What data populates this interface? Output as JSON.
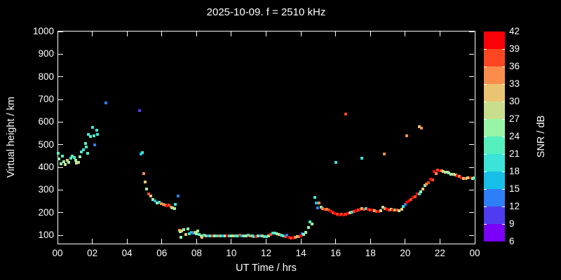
{
  "window": {
    "background": "#000000",
    "foreground": "#ffffff"
  },
  "axes": {
    "x": {
      "tick_labels": [
        "00",
        "02",
        "04",
        "06",
        "08",
        "10",
        "12",
        "14",
        "16",
        "18",
        "20",
        "22",
        "00"
      ]
    },
    "y": {
      "tick_values": [
        100,
        200,
        300,
        400,
        500,
        600,
        700,
        800,
        900,
        1000
      ]
    }
  },
  "colorbar": {
    "label": "SNR / dB",
    "tick_values": [
      42,
      39,
      36,
      33,
      30,
      27,
      24,
      21,
      18,
      15,
      12,
      9,
      6
    ],
    "bin_size_db": 3,
    "palette_low_to_high": [
      "#7a00f7",
      "#4f3cf0",
      "#2e7ef7",
      "#17bfe8",
      "#3be3d8",
      "#55efc0",
      "#98f5a8",
      "#c9de8d",
      "#eac472",
      "#fb8d4c",
      "#fc4621",
      "#fb0007"
    ]
  },
  "chart_data": {
    "type": "scatter",
    "title": "2025-10-09. f = 2510 kHz",
    "xlabel": "UT Time / hrs",
    "ylabel": "Virtual height / km",
    "color_label": "SNR / dB",
    "xlim": [
      0,
      24
    ],
    "ylim": [
      100,
      1000
    ],
    "clim": [
      6,
      42
    ],
    "grid": false,
    "points_t_h_snr": [
      [
        0.05,
        462,
        21
      ],
      [
        0.1,
        438,
        24
      ],
      [
        0.2,
        415,
        25
      ],
      [
        0.3,
        448,
        21
      ],
      [
        0.38,
        425,
        24
      ],
      [
        0.45,
        412,
        28
      ],
      [
        0.55,
        432,
        30
      ],
      [
        0.65,
        422,
        24
      ],
      [
        0.75,
        440,
        21
      ],
      [
        0.85,
        448,
        22
      ],
      [
        0.95,
        443,
        21
      ],
      [
        1.05,
        430,
        24
      ],
      [
        1.1,
        418,
        28
      ],
      [
        1.2,
        422,
        27
      ],
      [
        1.3,
        445,
        24
      ],
      [
        1.38,
        468,
        21
      ],
      [
        1.5,
        478,
        19
      ],
      [
        1.6,
        506,
        21
      ],
      [
        1.66,
        490,
        22
      ],
      [
        1.72,
        462,
        21
      ],
      [
        1.78,
        545,
        20
      ],
      [
        1.9,
        535,
        21
      ],
      [
        2.0,
        576,
        19
      ],
      [
        2.1,
        540,
        22
      ],
      [
        2.14,
        500,
        13
      ],
      [
        2.25,
        565,
        20
      ],
      [
        2.3,
        545,
        19
      ],
      [
        2.8,
        685,
        13
      ],
      [
        4.7,
        650,
        10
      ],
      [
        4.78,
        458,
        17
      ],
      [
        4.88,
        466,
        19
      ],
      [
        4.95,
        373,
        34
      ],
      [
        5.05,
        336,
        31
      ],
      [
        5.13,
        303,
        26
      ],
      [
        5.25,
        284,
        37
      ],
      [
        5.35,
        273,
        31
      ],
      [
        5.48,
        257,
        25
      ],
      [
        5.6,
        251,
        16
      ],
      [
        5.72,
        242,
        25
      ],
      [
        5.85,
        245,
        20
      ],
      [
        5.97,
        239,
        34
      ],
      [
        6.1,
        236,
        34
      ],
      [
        6.22,
        232,
        35
      ],
      [
        6.3,
        230,
        40
      ],
      [
        6.42,
        233,
        37
      ],
      [
        6.52,
        223,
        34
      ],
      [
        6.62,
        220,
        29
      ],
      [
        6.72,
        216,
        25
      ],
      [
        6.78,
        236,
        19
      ],
      [
        6.95,
        272,
        13
      ],
      [
        7.0,
        122,
        34
      ],
      [
        7.05,
        116,
        24
      ],
      [
        7.08,
        91,
        25
      ],
      [
        7.12,
        119,
        30
      ],
      [
        7.25,
        125,
        24
      ],
      [
        7.4,
        103,
        30
      ],
      [
        7.5,
        128,
        24
      ],
      [
        7.6,
        106,
        19
      ],
      [
        7.7,
        112,
        16
      ],
      [
        7.82,
        109,
        14
      ],
      [
        7.92,
        112,
        30
      ],
      [
        8.0,
        106,
        24
      ],
      [
        8.08,
        119,
        24
      ],
      [
        8.15,
        103,
        22
      ],
      [
        8.25,
        97,
        24
      ],
      [
        8.32,
        92,
        30
      ],
      [
        8.44,
        100,
        19
      ],
      [
        8.56,
        98,
        31
      ],
      [
        8.68,
        97,
        16
      ],
      [
        8.8,
        98,
        22
      ],
      [
        8.92,
        96,
        37
      ],
      [
        9.04,
        97,
        25
      ],
      [
        9.16,
        98,
        19
      ],
      [
        9.28,
        96,
        34
      ],
      [
        9.4,
        97,
        22
      ],
      [
        9.52,
        98,
        16
      ],
      [
        9.64,
        97,
        28
      ],
      [
        9.76,
        96,
        40
      ],
      [
        9.88,
        98,
        19
      ],
      [
        10.0,
        97,
        25
      ],
      [
        10.12,
        98,
        31
      ],
      [
        10.24,
        97,
        19
      ],
      [
        10.36,
        98,
        22
      ],
      [
        10.48,
        100,
        37
      ],
      [
        10.6,
        98,
        16
      ],
      [
        10.72,
        97,
        25
      ],
      [
        10.84,
        98,
        28
      ],
      [
        10.96,
        100,
        19
      ],
      [
        11.08,
        98,
        34
      ],
      [
        11.2,
        96,
        22
      ],
      [
        11.3,
        94,
        19
      ],
      [
        11.42,
        94,
        40
      ],
      [
        11.54,
        96,
        25
      ],
      [
        11.66,
        97,
        16
      ],
      [
        11.78,
        96,
        31
      ],
      [
        11.9,
        94,
        22
      ],
      [
        12.02,
        94,
        19
      ],
      [
        12.14,
        97,
        28
      ],
      [
        12.26,
        104,
        37
      ],
      [
        12.38,
        108,
        19
      ],
      [
        12.5,
        110,
        22
      ],
      [
        12.62,
        107,
        25
      ],
      [
        12.74,
        103,
        31
      ],
      [
        12.86,
        99,
        19
      ],
      [
        12.98,
        96,
        22
      ],
      [
        13.1,
        94,
        37
      ],
      [
        13.2,
        100,
        13
      ],
      [
        13.3,
        91,
        40
      ],
      [
        13.42,
        88,
        37
      ],
      [
        13.54,
        88,
        40
      ],
      [
        13.66,
        91,
        34
      ],
      [
        13.78,
        94,
        28
      ],
      [
        13.88,
        95,
        34
      ],
      [
        13.98,
        98,
        40
      ],
      [
        14.06,
        106,
        13
      ],
      [
        14.16,
        103,
        24
      ],
      [
        14.26,
        112,
        24
      ],
      [
        14.46,
        134,
        24
      ],
      [
        14.54,
        159,
        21
      ],
      [
        14.66,
        149,
        26
      ],
      [
        14.79,
        268,
        19
      ],
      [
        14.88,
        243,
        16
      ],
      [
        14.96,
        221,
        13
      ],
      [
        15.06,
        243,
        34
      ],
      [
        15.16,
        224,
        24
      ],
      [
        15.26,
        218,
        34
      ],
      [
        15.38,
        215,
        37
      ],
      [
        15.5,
        213,
        34
      ],
      [
        15.62,
        210,
        37
      ],
      [
        15.74,
        205,
        40
      ],
      [
        15.86,
        200,
        37
      ],
      [
        15.98,
        197,
        40
      ],
      [
        16.1,
        194,
        37
      ],
      [
        16.22,
        191,
        40
      ],
      [
        16.34,
        192,
        37
      ],
      [
        16.46,
        190,
        40
      ],
      [
        16.58,
        192,
        37
      ],
      [
        16.7,
        196,
        40
      ],
      [
        16.82,
        199,
        31
      ],
      [
        16.94,
        202,
        18
      ],
      [
        17.06,
        205,
        37
      ],
      [
        17.18,
        208,
        40
      ],
      [
        17.3,
        211,
        37
      ],
      [
        17.42,
        214,
        40
      ],
      [
        17.52,
        217,
        31
      ],
      [
        17.64,
        215,
        37
      ],
      [
        17.76,
        217,
        18
      ],
      [
        17.88,
        215,
        40
      ],
      [
        18.0,
        212,
        37
      ],
      [
        18.1,
        210,
        40
      ],
      [
        18.22,
        209,
        31
      ],
      [
        18.34,
        206,
        37
      ],
      [
        18.46,
        205,
        40
      ],
      [
        18.58,
        208,
        28
      ],
      [
        18.7,
        223,
        28
      ],
      [
        18.82,
        218,
        34
      ],
      [
        18.94,
        215,
        40
      ],
      [
        19.06,
        212,
        37
      ],
      [
        19.18,
        214,
        28
      ],
      [
        19.3,
        212,
        40
      ],
      [
        19.42,
        210,
        31
      ],
      [
        19.54,
        212,
        37
      ],
      [
        19.66,
        209,
        28
      ],
      [
        19.8,
        214,
        31
      ],
      [
        19.9,
        227,
        19
      ],
      [
        20.0,
        236,
        13
      ],
      [
        20.1,
        246,
        40
      ],
      [
        20.22,
        252,
        40
      ],
      [
        20.34,
        258,
        37
      ],
      [
        20.46,
        266,
        40
      ],
      [
        20.58,
        271,
        37
      ],
      [
        20.7,
        282,
        40
      ],
      [
        20.8,
        284,
        19
      ],
      [
        20.88,
        292,
        25
      ],
      [
        21.0,
        305,
        31
      ],
      [
        21.12,
        319,
        25
      ],
      [
        21.2,
        326,
        34
      ],
      [
        21.32,
        331,
        37
      ],
      [
        21.44,
        347,
        40
      ],
      [
        21.56,
        345,
        37
      ],
      [
        21.68,
        381,
        40
      ],
      [
        21.78,
        373,
        34
      ],
      [
        21.88,
        389,
        37
      ],
      [
        21.98,
        385,
        40
      ],
      [
        22.1,
        386,
        34
      ],
      [
        22.2,
        382,
        31
      ],
      [
        22.3,
        377,
        25
      ],
      [
        22.42,
        379,
        28
      ],
      [
        22.52,
        374,
        25
      ],
      [
        22.64,
        370,
        25
      ],
      [
        22.78,
        368,
        31
      ],
      [
        22.9,
        367,
        25
      ],
      [
        23.0,
        364,
        40
      ],
      [
        23.12,
        361,
        34
      ],
      [
        23.22,
        355,
        40
      ],
      [
        23.35,
        352,
        31
      ],
      [
        23.48,
        349,
        34
      ],
      [
        23.6,
        354,
        28
      ],
      [
        23.74,
        354,
        40
      ],
      [
        23.88,
        351,
        25
      ],
      [
        23.97,
        353,
        22
      ],
      [
        16.02,
        422,
        19
      ],
      [
        16.58,
        635,
        37
      ],
      [
        17.5,
        441,
        19
      ],
      [
        18.8,
        460,
        34
      ],
      [
        20.1,
        538,
        34
      ],
      [
        20.82,
        578,
        31
      ],
      [
        20.95,
        574,
        34
      ]
    ]
  }
}
